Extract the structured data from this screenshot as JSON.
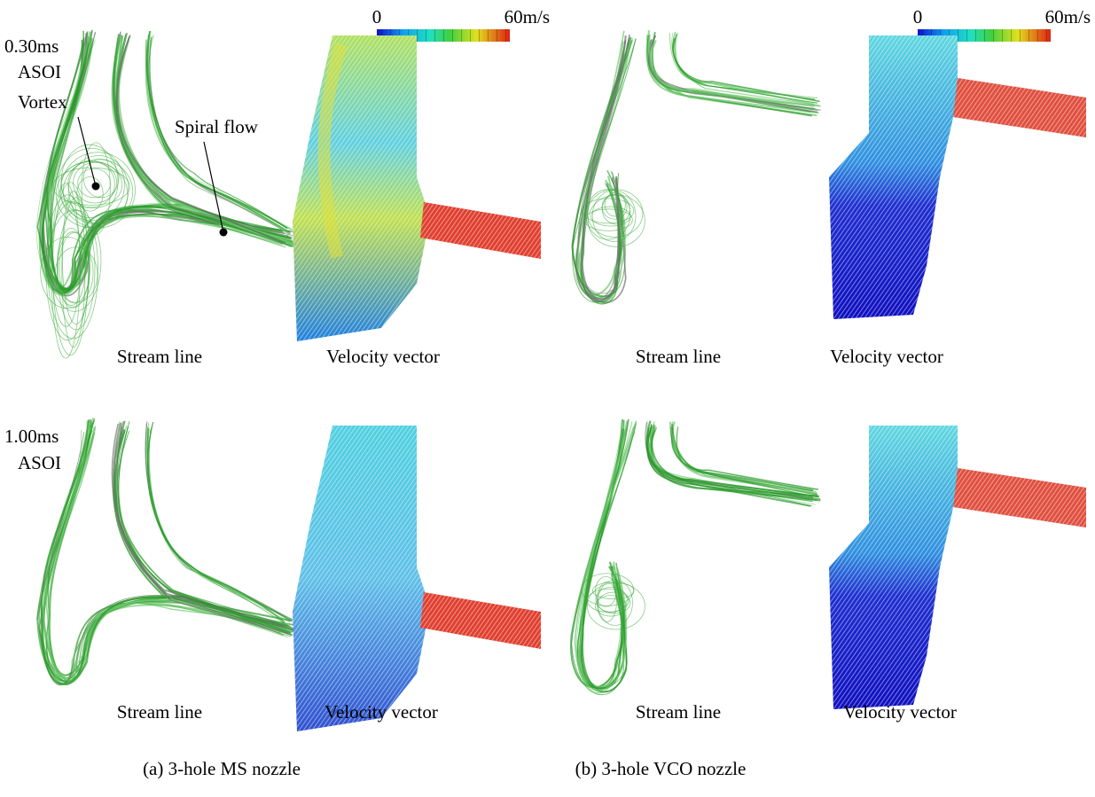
{
  "colorbars": [
    {
      "min": "0",
      "max": "60m/s"
    },
    {
      "min": "0",
      "max": "60m/s"
    }
  ],
  "rows": [
    {
      "time": "0.30ms",
      "label": "ASOI"
    },
    {
      "time": "1.00ms",
      "label": "ASOI"
    }
  ],
  "annotations": {
    "vortex": "Vortex",
    "spiral": "Spiral flow"
  },
  "panels": [
    {
      "stream": "Stream line",
      "vector": "Velocity vector"
    },
    {
      "stream": "Stream line",
      "vector": "Velocity vector"
    },
    {
      "stream": "Stream line",
      "vector": "Velocity vector"
    },
    {
      "stream": "Stream line",
      "vector": "Velocity vector"
    }
  ],
  "columns": [
    "(a) 3-hole MS nozzle",
    "(b) 3-hole VCO nozzle"
  ]
}
